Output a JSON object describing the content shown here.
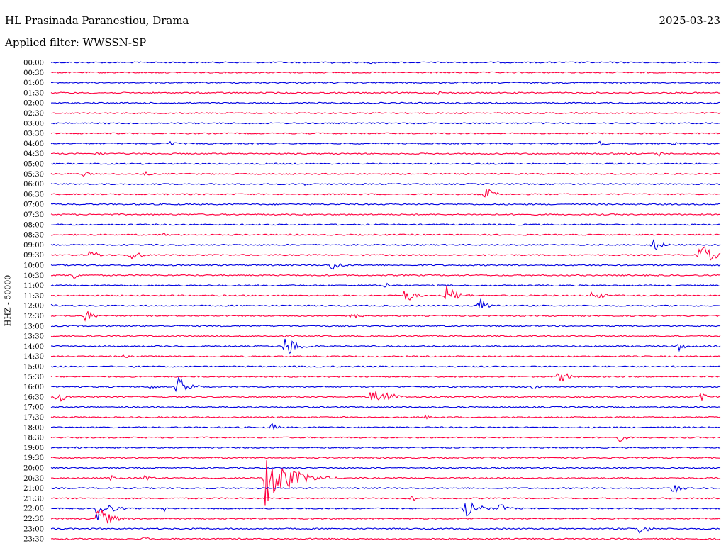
{
  "header": {
    "station": "HL Prasinada Paranestiou, Drama",
    "date": "2025-03-23",
    "filter": "Applied filter: WWSSN-SP"
  },
  "chart_data": {
    "type": "helicorder",
    "ylabel": "HHZ - 50000",
    "colors": [
      "#0000e0",
      "#ff0040"
    ],
    "rows": [
      {
        "label": "00:00",
        "events": [
          [
            0.42,
            3
          ],
          [
            0.48,
            3
          ]
        ]
      },
      {
        "label": "00:30",
        "events": []
      },
      {
        "label": "01:00",
        "events": []
      },
      {
        "label": "01:30",
        "events": [
          [
            0.58,
            3
          ]
        ]
      },
      {
        "label": "02:00",
        "events": []
      },
      {
        "label": "02:30",
        "events": []
      },
      {
        "label": "03:00",
        "events": []
      },
      {
        "label": "03:30",
        "events": []
      },
      {
        "label": "04:00",
        "events": [
          [
            0.18,
            4
          ],
          [
            0.82,
            4
          ],
          [
            0.93,
            3
          ]
        ]
      },
      {
        "label": "04:30",
        "events": [
          [
            0.07,
            4
          ],
          [
            0.91,
            4
          ]
        ]
      },
      {
        "label": "05:00",
        "events": []
      },
      {
        "label": "05:30",
        "events": [
          [
            0.05,
            4
          ],
          [
            0.14,
            4
          ]
        ]
      },
      {
        "label": "06:00",
        "events": [
          [
            0.38,
            3
          ]
        ]
      },
      {
        "label": "06:30",
        "events": [
          [
            0.65,
            10
          ]
        ]
      },
      {
        "label": "07:00",
        "events": []
      },
      {
        "label": "07:30",
        "events": []
      },
      {
        "label": "08:00",
        "events": []
      },
      {
        "label": "08:30",
        "events": [
          [
            0.17,
            3
          ]
        ]
      },
      {
        "label": "09:00",
        "events": [
          [
            0.9,
            10
          ]
        ]
      },
      {
        "label": "09:30",
        "events": [
          [
            0.06,
            8
          ],
          [
            0.12,
            10
          ],
          [
            0.97,
            18
          ]
        ]
      },
      {
        "label": "10:00",
        "events": [
          [
            0.42,
            9
          ]
        ]
      },
      {
        "label": "10:30",
        "events": [
          [
            0.03,
            8
          ]
        ]
      },
      {
        "label": "11:00",
        "events": [
          [
            0.5,
            5
          ]
        ]
      },
      {
        "label": "11:30",
        "events": [
          [
            0.53,
            11
          ],
          [
            0.59,
            16
          ],
          [
            0.81,
            10
          ]
        ]
      },
      {
        "label": "12:00",
        "events": [
          [
            0.0,
            4
          ],
          [
            0.64,
            12
          ]
        ]
      },
      {
        "label": "12:30",
        "events": [
          [
            0.05,
            10
          ],
          [
            0.45,
            6
          ]
        ]
      },
      {
        "label": "13:00",
        "events": []
      },
      {
        "label": "13:30",
        "events": []
      },
      {
        "label": "14:00",
        "events": [
          [
            0.35,
            17
          ],
          [
            0.94,
            7
          ]
        ]
      },
      {
        "label": "14:30",
        "events": [
          [
            0.11,
            3
          ]
        ]
      },
      {
        "label": "15:00",
        "events": []
      },
      {
        "label": "15:30",
        "events": [
          [
            0.76,
            11
          ]
        ]
      },
      {
        "label": "16:00",
        "events": [
          [
            0.15,
            4
          ],
          [
            0.19,
            15
          ],
          [
            0.72,
            4
          ]
        ]
      },
      {
        "label": "16:30",
        "events": [
          [
            0.01,
            10
          ],
          [
            0.48,
            13
          ],
          [
            0.49,
            16
          ],
          [
            0.97,
            10
          ]
        ]
      },
      {
        "label": "17:00",
        "events": []
      },
      {
        "label": "17:30",
        "events": [
          [
            0.56,
            3
          ]
        ]
      },
      {
        "label": "18:00",
        "events": [
          [
            0.33,
            6
          ]
        ]
      },
      {
        "label": "18:30",
        "events": [
          [
            0.85,
            6
          ]
        ]
      },
      {
        "label": "19:00",
        "events": [
          [
            0.04,
            3
          ]
        ]
      },
      {
        "label": "19:30",
        "events": []
      },
      {
        "label": "20:00",
        "events": []
      },
      {
        "label": "20:30",
        "events": [
          [
            0.09,
            4
          ],
          [
            0.14,
            6
          ],
          [
            0.32,
            42
          ]
        ]
      },
      {
        "label": "21:00",
        "events": [
          [
            0.93,
            8
          ]
        ]
      },
      {
        "label": "21:30",
        "events": [
          [
            0.54,
            4
          ]
        ]
      },
      {
        "label": "22:00",
        "events": [
          [
            0.07,
            17
          ],
          [
            0.17,
            4
          ],
          [
            0.62,
            17
          ],
          [
            0.67,
            9
          ]
        ]
      },
      {
        "label": "22:30",
        "events": [
          [
            0.07,
            18
          ]
        ]
      },
      {
        "label": "23:00",
        "events": [
          [
            0.88,
            9
          ]
        ]
      },
      {
        "label": "23:30",
        "events": [
          [
            0.14,
            3
          ]
        ]
      }
    ]
  }
}
